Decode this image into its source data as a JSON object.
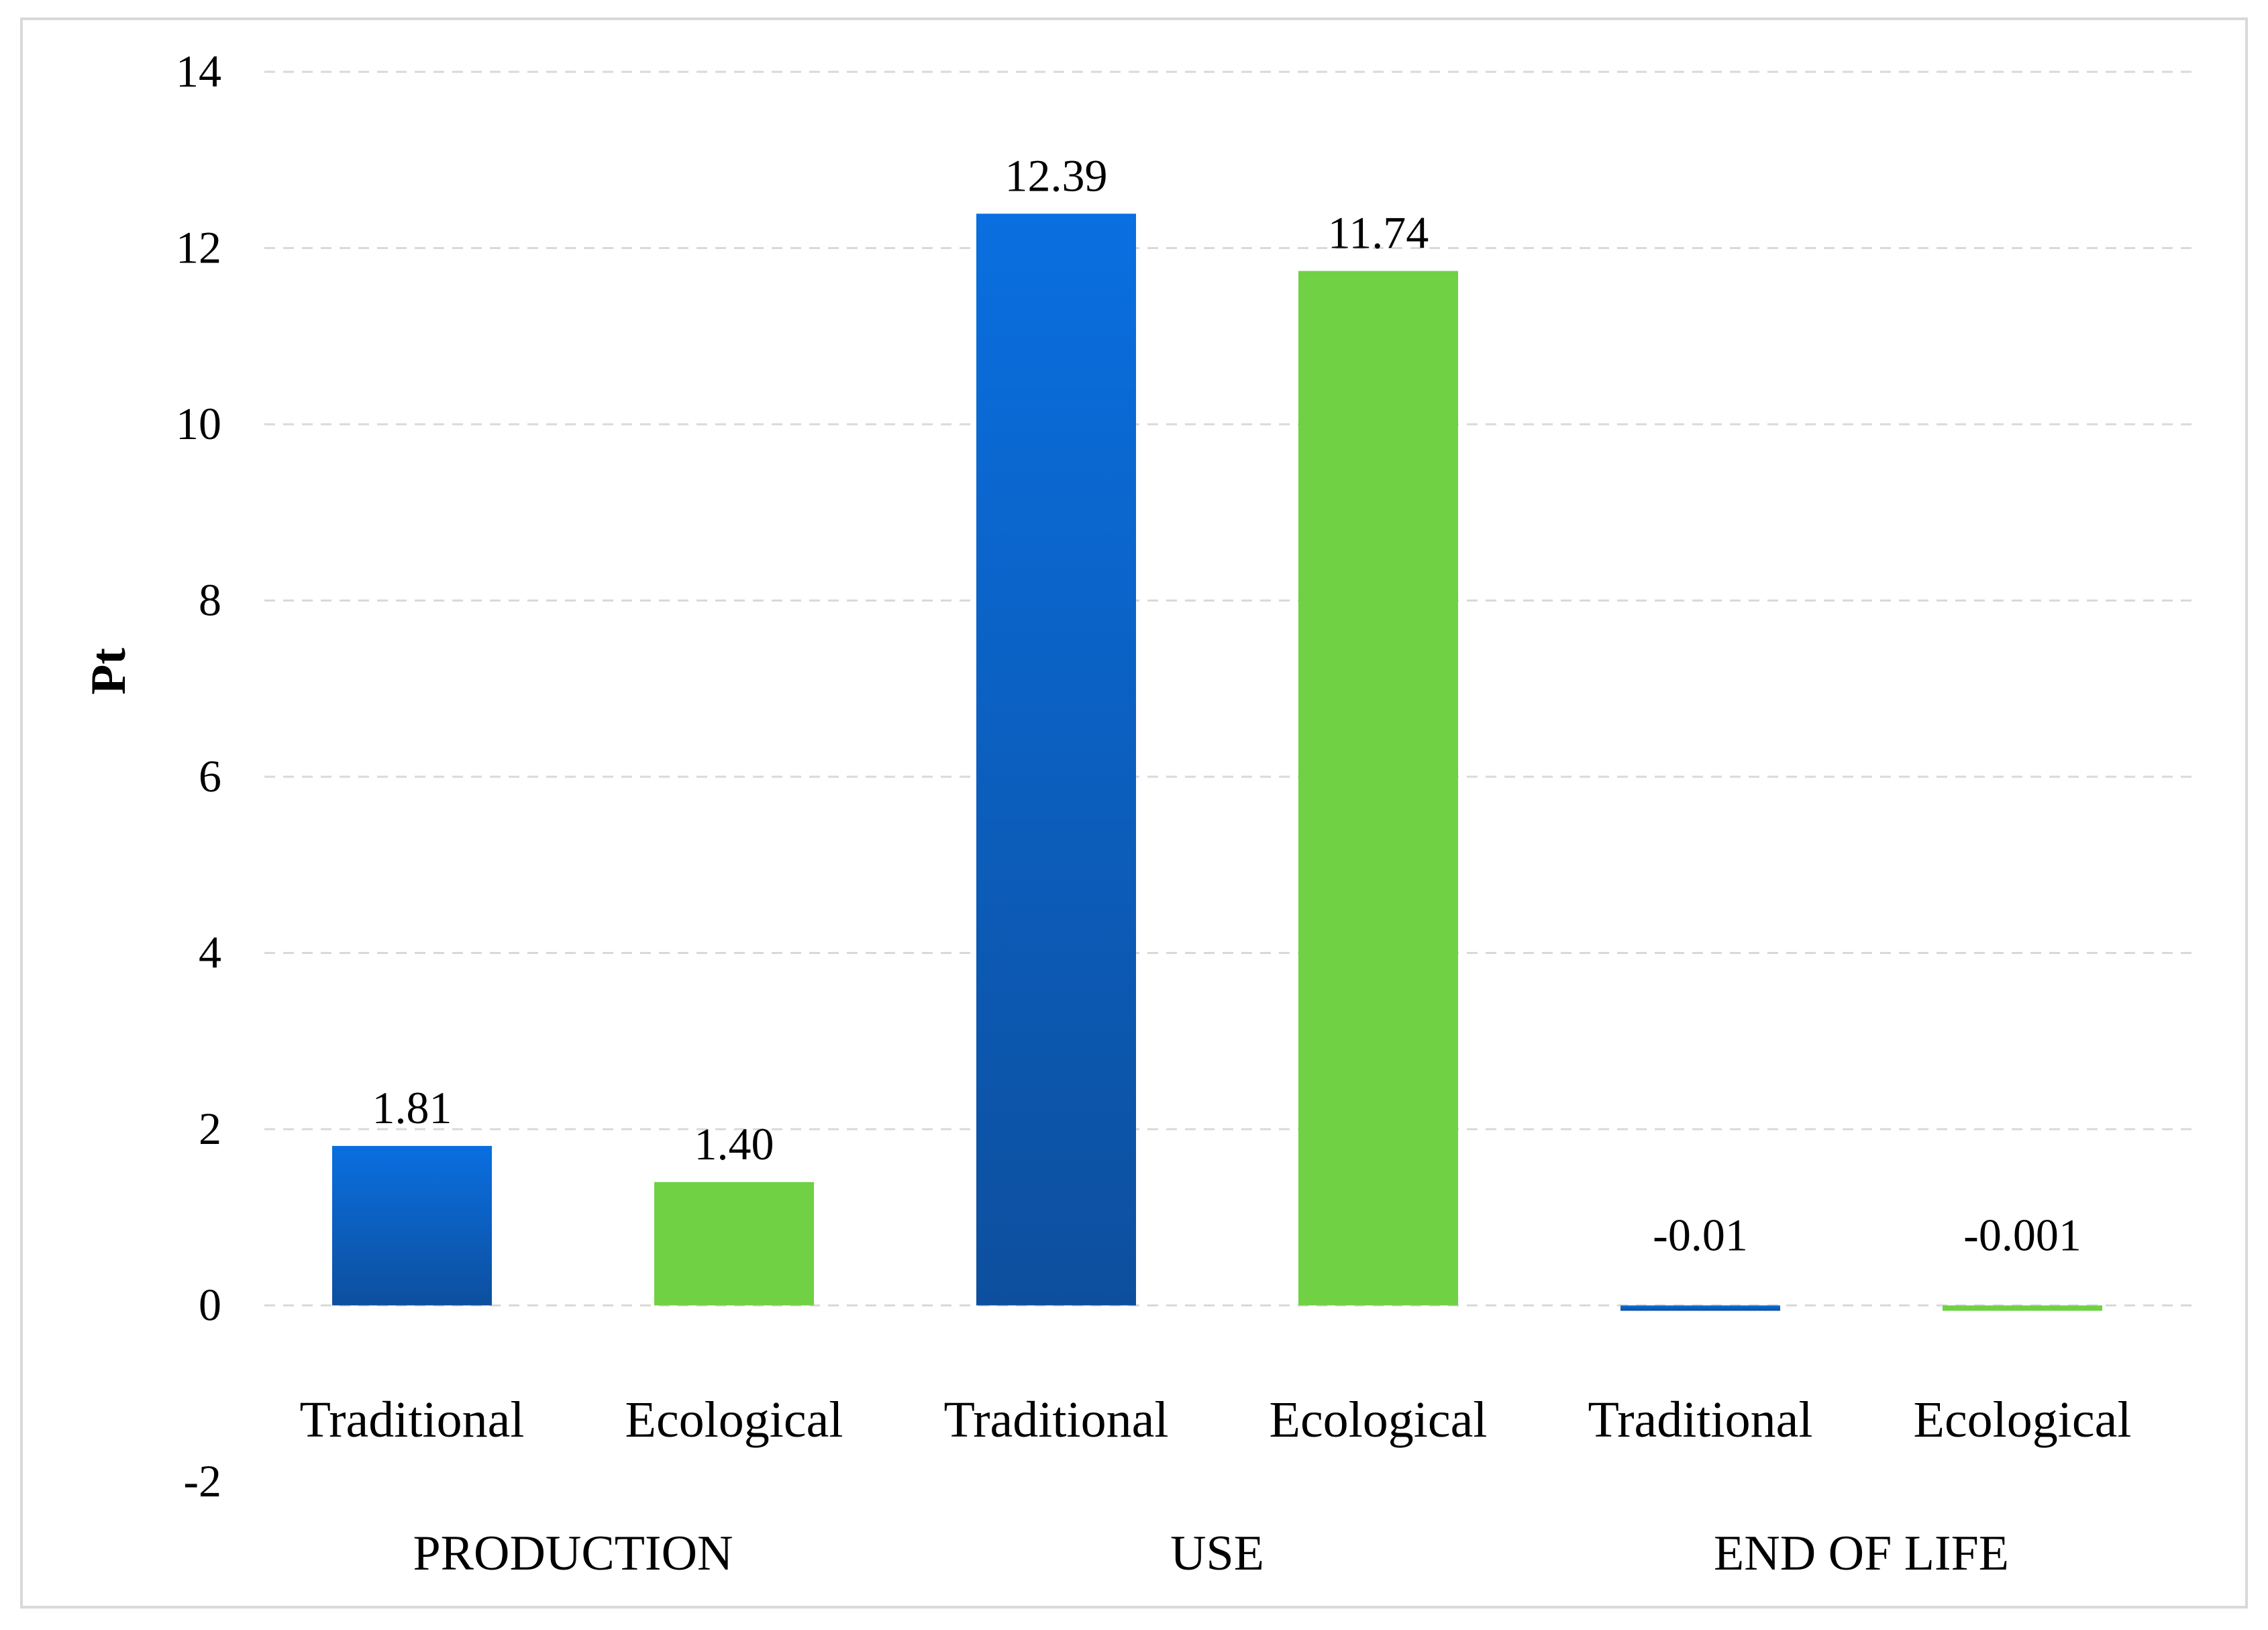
{
  "chart_data": {
    "type": "bar",
    "title": "",
    "ylabel": "Pt",
    "xlabel": "",
    "ylim": [
      -2,
      14
    ],
    "yticks": [
      14,
      12,
      10,
      8,
      6,
      4,
      2,
      0,
      -2
    ],
    "yticks_text": [
      "14",
      "12",
      "10",
      "8",
      "6",
      "4",
      "2",
      "0",
      "-2"
    ],
    "grid": true,
    "groups": [
      {
        "name": "PRODUCTION",
        "bars": [
          {
            "category": "Traditional",
            "value": 1.81,
            "label": "1.81",
            "series": "Traditional"
          },
          {
            "category": "Ecological",
            "value": 1.4,
            "label": "1.40",
            "series": "Ecological"
          }
        ]
      },
      {
        "name": "USE",
        "bars": [
          {
            "category": "Traditional",
            "value": 12.39,
            "label": "12.39",
            "series": "Traditional"
          },
          {
            "category": "Ecological",
            "value": 11.74,
            "label": "11.74",
            "series": "Ecological"
          }
        ]
      },
      {
        "name": "END OF LIFE",
        "bars": [
          {
            "category": "Traditional",
            "value": -0.01,
            "label": "-0.01",
            "series": "Traditional"
          },
          {
            "category": "Ecological",
            "value": -0.001,
            "label": "-0.001",
            "series": "Ecological"
          }
        ]
      }
    ],
    "series_colors": {
      "Traditional": {
        "top": "#0a6fe0",
        "bottom": "#0d4f9e"
      },
      "Ecological": {
        "top": "#6fd143",
        "bottom": "#6fd143"
      }
    },
    "grid_color": "#d9d9d9"
  }
}
